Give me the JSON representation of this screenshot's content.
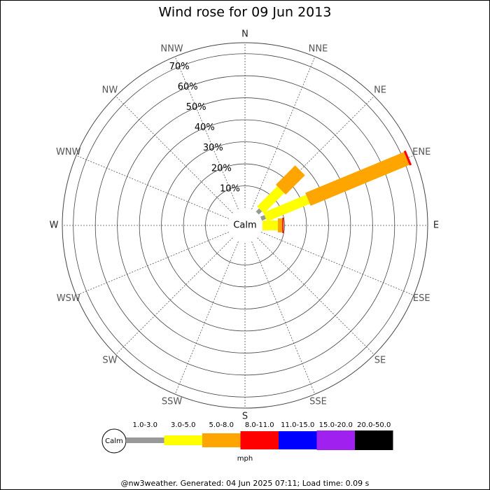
{
  "chart_data": {
    "type": "windrose",
    "title": "Wind rose for 09 Jun 2013",
    "directions": [
      "N",
      "NNE",
      "NE",
      "ENE",
      "E",
      "ESE",
      "SE",
      "SSE",
      "S",
      "SSW",
      "SW",
      "WSW",
      "W",
      "WNW",
      "NW",
      "NNW"
    ],
    "calm_label": "Calm",
    "rlim": [
      0,
      75
    ],
    "rticks": [
      {
        "value": 10,
        "label": "10%"
      },
      {
        "value": 20,
        "label": "20%"
      },
      {
        "value": 30,
        "label": "30%"
      },
      {
        "value": 40,
        "label": "40%"
      },
      {
        "value": 50,
        "label": "50%"
      },
      {
        "value": 60,
        "label": "60%"
      },
      {
        "value": 70,
        "label": "70%"
      }
    ],
    "series": [
      {
        "name": "1.0-3.0",
        "color": "#999999",
        "values": [
          0,
          0,
          2,
          2,
          0,
          0,
          0,
          0,
          0,
          0,
          0,
          0,
          0,
          0,
          0,
          0
        ]
      },
      {
        "name": "3.0-5.0",
        "color": "#ffff00",
        "values": [
          0,
          0,
          13,
          21,
          7,
          0,
          0,
          0,
          0,
          0,
          0,
          0,
          0,
          0,
          0,
          0
        ]
      },
      {
        "name": "5.0-8.0",
        "color": "#ffa500",
        "values": [
          0,
          0,
          12.4,
          48.5,
          2,
          0,
          0,
          0,
          0,
          0,
          0,
          0,
          0,
          0,
          0,
          0
        ]
      },
      {
        "name": "8.0-11.0",
        "color": "#ff0000",
        "values": [
          0,
          0,
          0,
          1,
          0.6,
          0,
          0,
          0,
          0,
          0,
          0,
          0,
          0,
          0,
          0,
          0
        ]
      },
      {
        "name": "11.0-15.0",
        "color": "#0000ff",
        "values": [
          0,
          0,
          0,
          0,
          0,
          0,
          0,
          0,
          0,
          0,
          0,
          0,
          0,
          0,
          0,
          0
        ]
      },
      {
        "name": "15.0-20.0",
        "color": "#a020f0",
        "values": [
          0,
          0,
          0,
          0,
          0,
          0,
          0,
          0,
          0,
          0,
          0,
          0,
          0,
          0,
          0,
          0
        ]
      },
      {
        "name": "20.0-50.0",
        "color": "#000000",
        "values": [
          0,
          0,
          0,
          0,
          0,
          0,
          0,
          0,
          0,
          0,
          0,
          0,
          0,
          0,
          0,
          0
        ]
      }
    ],
    "unit": "mph",
    "footer": "@nw3weather. Generated: 04 Jun 2025 07:11; Load time: 0.09 s"
  }
}
